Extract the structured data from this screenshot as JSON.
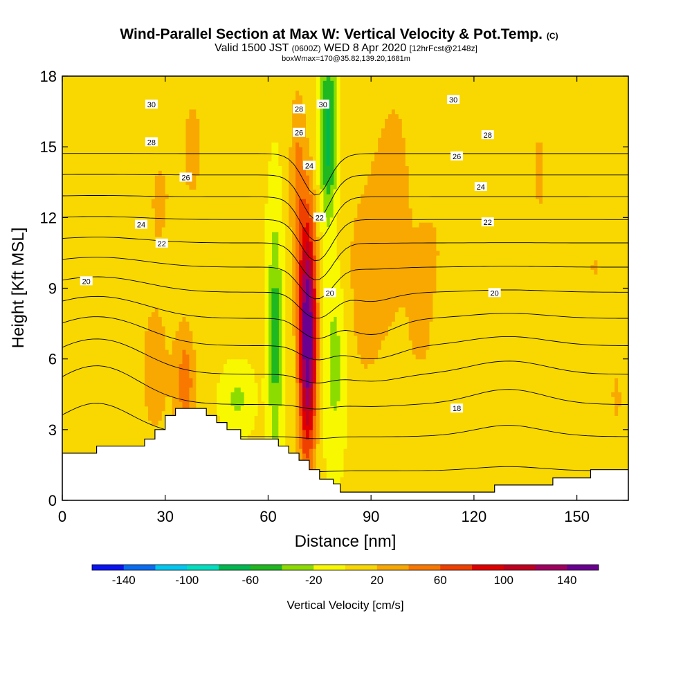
{
  "chart_data": {
    "type": "heatmap",
    "title": "Wind-Parallel Section at Max W: Vertical Velocity & Pot.Temp.",
    "title_mark": "(C)",
    "subtitle": {
      "valid": "Valid 1500 JST",
      "utc": "(0600Z)",
      "date": "WED 8 Apr 2020",
      "forecast": "[12hrFcst@2148z]"
    },
    "box_info": "boxWmax=170@35.82,139.20,1681m",
    "xlabel": "Distance [nm]",
    "ylabel": "Height [Kft MSL]",
    "xlim": [
      0,
      165
    ],
    "ylim": [
      0,
      18
    ],
    "xticks": [
      0,
      30,
      60,
      90,
      120,
      150
    ],
    "yticks": [
      0,
      3,
      6,
      9,
      12,
      15,
      18
    ],
    "colorbar": {
      "label": "Vertical Velocity [cm/s]",
      "min": -160,
      "max": 160,
      "step": 20,
      "tick_labels": [
        -140,
        -100,
        -60,
        -20,
        20,
        60,
        100,
        140
      ],
      "colors": [
        "#0a14f0",
        "#0a6cf0",
        "#00c8f0",
        "#00e0c0",
        "#00b850",
        "#20b820",
        "#8cdc00",
        "#f8f800",
        "#f8d800",
        "#f8a800",
        "#f87800",
        "#f04000",
        "#e00000",
        "#c00020",
        "#a00060",
        "#6a0090"
      ]
    },
    "terrain": [
      [
        0,
        2
      ],
      [
        10,
        2
      ],
      [
        10,
        2.3
      ],
      [
        24,
        2.3
      ],
      [
        24,
        2.6
      ],
      [
        27,
        2.6
      ],
      [
        27,
        3.0
      ],
      [
        30,
        3.0
      ],
      [
        30,
        3.6
      ],
      [
        33,
        3.6
      ],
      [
        33,
        3.9
      ],
      [
        42,
        3.9
      ],
      [
        42,
        3.6
      ],
      [
        45,
        3.6
      ],
      [
        45,
        3.3
      ],
      [
        48,
        3.3
      ],
      [
        48,
        3.0
      ],
      [
        52,
        3.0
      ],
      [
        52,
        2.6
      ],
      [
        63,
        2.6
      ],
      [
        63,
        2.3
      ],
      [
        66,
        2.3
      ],
      [
        66,
        2.0
      ],
      [
        69,
        2.0
      ],
      [
        69,
        1.7
      ],
      [
        72,
        1.7
      ],
      [
        72,
        1.3
      ],
      [
        75,
        1.3
      ],
      [
        75,
        0.9
      ],
      [
        79,
        0.9
      ],
      [
        79,
        0.7
      ],
      [
        81,
        0.7
      ],
      [
        81,
        0.35
      ],
      [
        126,
        0.35
      ],
      [
        126,
        0.65
      ],
      [
        143,
        0.65
      ],
      [
        143,
        0.95
      ],
      [
        154,
        0.95
      ],
      [
        154,
        1.3
      ],
      [
        165,
        1.3
      ]
    ],
    "vertical_velocity_features": [
      {
        "x": 71.5,
        "y": 7.0,
        "sx": 1.8,
        "sy": 3.6,
        "amp": 165
      },
      {
        "x": 68.5,
        "y": 13.5,
        "sx": 1.6,
        "sy": 2.8,
        "amp": 40
      },
      {
        "x": 36.0,
        "y": 5.0,
        "sx": 2.0,
        "sy": 1.6,
        "amp": 45
      },
      {
        "x": 62.0,
        "y": 7.0,
        "sx": 1.5,
        "sy": 3.6,
        "amp": -55
      },
      {
        "x": 77.5,
        "y": 15.5,
        "sx": 1.8,
        "sy": 2.6,
        "amp": -75
      },
      {
        "x": 79.5,
        "y": 6.0,
        "sx": 2.5,
        "sy": 2.8,
        "amp": -38
      },
      {
        "x": 51.0,
        "y": 4.3,
        "sx": 3.0,
        "sy": 0.9,
        "amp": -30
      },
      {
        "x": 27.0,
        "y": 5.5,
        "sx": 5.0,
        "sy": 3.5,
        "amp": 20
      },
      {
        "x": 38.0,
        "y": 15.0,
        "sx": 4.5,
        "sy": 3.5,
        "amp": 18
      },
      {
        "x": 28.0,
        "y": 13.0,
        "sx": 3.0,
        "sy": 2.0,
        "amp": 15
      },
      {
        "x": 88.0,
        "y": 9.0,
        "sx": 6.0,
        "sy": 4.0,
        "amp": 22
      },
      {
        "x": 97.0,
        "y": 14.0,
        "sx": 5.0,
        "sy": 4.0,
        "amp": 18
      },
      {
        "x": 105.0,
        "y": 6.5,
        "sx": 5.0,
        "sy": 2.5,
        "amp": 15
      },
      {
        "x": 130.0,
        "y": 5.5,
        "sx": 4.0,
        "sy": 2.0,
        "amp": 15
      },
      {
        "x": 162.0,
        "y": 4.0,
        "sx": 3.5,
        "sy": 2.5,
        "amp": 15
      },
      {
        "x": 139.0,
        "y": 14.0,
        "sx": 3.0,
        "sy": 4.0,
        "amp": 17
      },
      {
        "x": 155.0,
        "y": 10.0,
        "sx": 5.0,
        "sy": 3.5,
        "amp": 16
      },
      {
        "x": 108.0,
        "y": 11.0,
        "sx": 4.0,
        "sy": 2.0,
        "amp": 14
      },
      {
        "x": 148.0,
        "y": 3.0,
        "sx": 4.0,
        "sy": 1.5,
        "amp": 14
      }
    ],
    "potential_temperature": {
      "levels": [
        18,
        19,
        20,
        21,
        22,
        23,
        24,
        25,
        26,
        27,
        28,
        29,
        30,
        31
      ],
      "labels": [
        {
          "text": "30",
          "x": 26,
          "y": 16.8
        },
        {
          "text": "28",
          "x": 26,
          "y": 15.2
        },
        {
          "text": "26",
          "x": 36,
          "y": 13.7
        },
        {
          "text": "24",
          "x": 23,
          "y": 11.7
        },
        {
          "text": "22",
          "x": 29,
          "y": 10.9
        },
        {
          "text": "20",
          "x": 7,
          "y": 9.3
        },
        {
          "text": "28",
          "x": 69,
          "y": 16.6
        },
        {
          "text": "30",
          "x": 76,
          "y": 16.8
        },
        {
          "text": "26",
          "x": 69,
          "y": 15.6
        },
        {
          "text": "24",
          "x": 72,
          "y": 14.2
        },
        {
          "text": "22",
          "x": 75,
          "y": 12.0
        },
        {
          "text": "20",
          "x": 78,
          "y": 8.8
        },
        {
          "text": "30",
          "x": 114,
          "y": 17.0
        },
        {
          "text": "28",
          "x": 124,
          "y": 15.5
        },
        {
          "text": "26",
          "x": 115,
          "y": 14.6
        },
        {
          "text": "24",
          "x": 122,
          "y": 13.3
        },
        {
          "text": "22",
          "x": 124,
          "y": 11.8
        },
        {
          "text": "20",
          "x": 126,
          "y": 8.8
        },
        {
          "text": "18",
          "x": 115,
          "y": 3.9
        }
      ]
    }
  }
}
